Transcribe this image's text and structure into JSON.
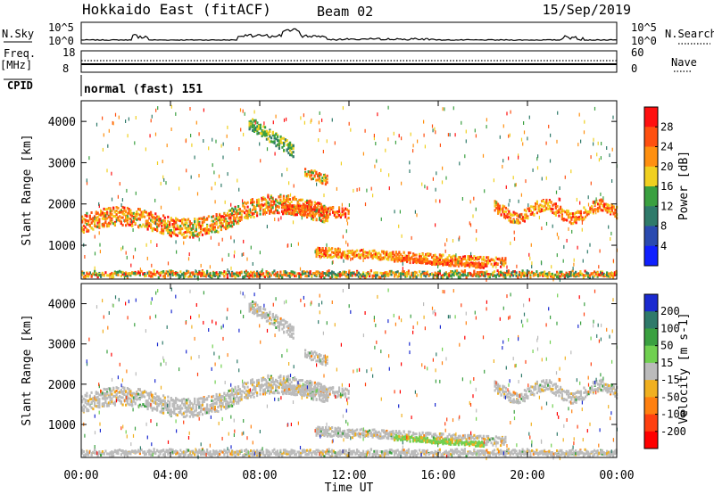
{
  "header": {
    "title": "Hokkaido East (fitACF)",
    "beam": "Beam 02",
    "date": "15/Sep/2019"
  },
  "strips": {
    "nsky_label": "N.Sky",
    "nsky_ticks": [
      "10^5",
      "10^0"
    ],
    "nsearch_label": "N.Search",
    "freq_label": "Freq.",
    "freq_unit": "[MHz]",
    "freq_ticks": [
      "18",
      "8"
    ],
    "nave_label": "Nave",
    "nave_ticks": [
      "60",
      "0"
    ],
    "cpid_label": "CPID",
    "cpid_value": "normal (fast) 151"
  },
  "chart_data": [
    {
      "type": "heatmap",
      "name": "power",
      "ylabel": "Slant Range [km]",
      "yticks": [
        1000,
        2000,
        3000,
        4000
      ],
      "ylim": [
        180,
        4500
      ],
      "xlim": [
        0,
        24
      ],
      "colorbar_label": "Power [dB]",
      "colorbar_ticks": [
        4,
        8,
        12,
        16,
        20,
        24,
        28
      ],
      "colorbar_range": [
        0,
        32
      ],
      "colors": [
        "#1020ff",
        "#2a4ab0",
        "#2f7a6a",
        "#3aa040",
        "#f0d020",
        "#ff9010",
        "#ff5010",
        "#ff1010"
      ]
    },
    {
      "type": "heatmap",
      "name": "velocity",
      "ylabel": "Slant Range [km]",
      "yticks": [
        1000,
        2000,
        3000,
        4000
      ],
      "ylim": [
        180,
        4500
      ],
      "xlim": [
        0,
        24
      ],
      "colorbar_label": "Velocity [m s-1]",
      "colorbar_ticks": [
        200,
        100,
        50,
        15,
        -15,
        -50,
        -100,
        -200
      ],
      "colors": [
        "#1a2ad0",
        "#2f7a6a",
        "#3aa040",
        "#70d050",
        "#bbbbbb",
        "#f0b020",
        "#ff8010",
        "#ff4010",
        "#ff0000"
      ]
    }
  ],
  "xaxis": {
    "label": "Time UT",
    "ticks": [
      "00:00",
      "04:00",
      "08:00",
      "12:00",
      "16:00",
      "20:00",
      "00:00"
    ]
  }
}
